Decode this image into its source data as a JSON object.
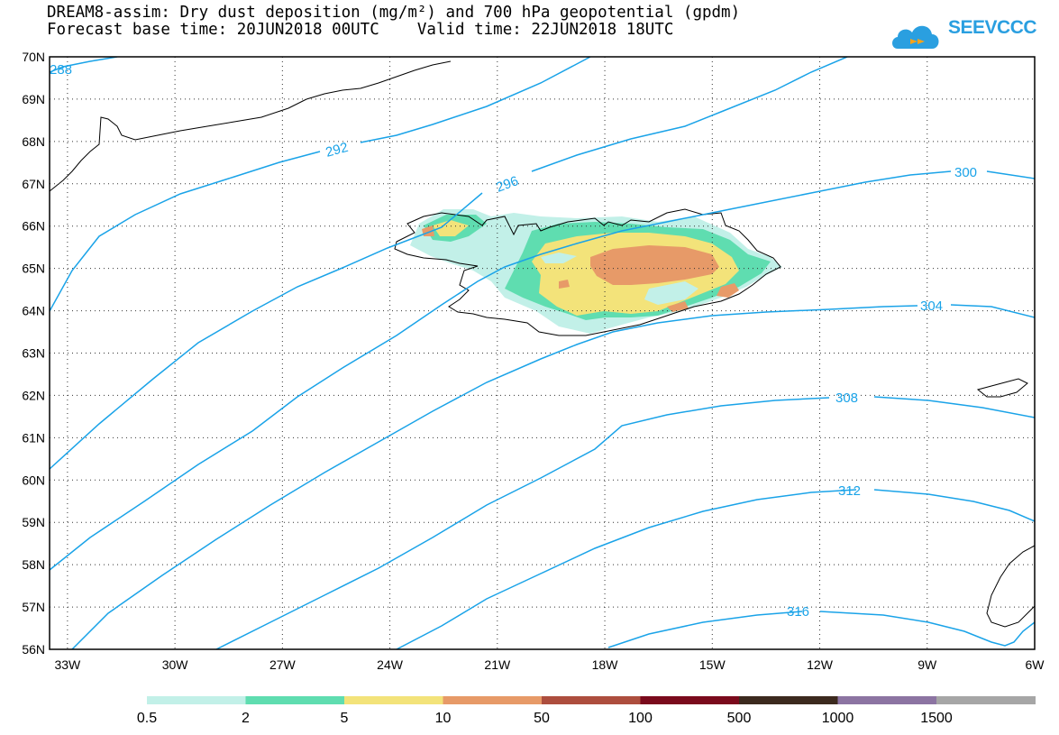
{
  "title": {
    "line1": "DREAM8-assim: Dry dust deposition (mg/m²) and 700 hPa geopotential (gpdm)",
    "line2": "Forecast base time: 20JUN2018 00UTC    Valid time: 22JUN2018 18UTC"
  },
  "logo": {
    "text": "SEEVCCC",
    "icon": "cloud-icon"
  },
  "colors": {
    "contour": "#1aa3e8",
    "coast": "#000000",
    "dep_05": "#c2f0e8",
    "dep_2": "#5fddb0",
    "dep_5": "#f3e37a",
    "dep_10": "#e79a68",
    "dep_50": "#ad4e3e",
    "dep_100": "#7a0a1c",
    "dep_500": "#3c2a1e",
    "dep_1000": "#8c74a2",
    "dep_1500": "#a6a6a6"
  },
  "axes": {
    "lat_labels": [
      "70N",
      "69N",
      "68N",
      "67N",
      "66N",
      "65N",
      "64N",
      "63N",
      "62N",
      "61N",
      "60N",
      "59N",
      "58N",
      "57N",
      "56N"
    ],
    "lon_labels": [
      "33W",
      "30W",
      "27W",
      "24W",
      "21W",
      "18W",
      "15W",
      "12W",
      "9W",
      "6W"
    ],
    "lat_range": [
      56,
      70
    ],
    "lon_range": [
      -33.5,
      -6
    ]
  },
  "contours": [
    {
      "label": "288"
    },
    {
      "label": "292"
    },
    {
      "label": "296"
    },
    {
      "label": "300"
    },
    {
      "label": "304"
    },
    {
      "label": "308"
    },
    {
      "label": "312"
    },
    {
      "label": "316"
    }
  ],
  "colorbar": {
    "labels": [
      "0.5",
      "2",
      "5",
      "10",
      "50",
      "100",
      "500",
      "1000",
      "1500"
    ]
  }
}
